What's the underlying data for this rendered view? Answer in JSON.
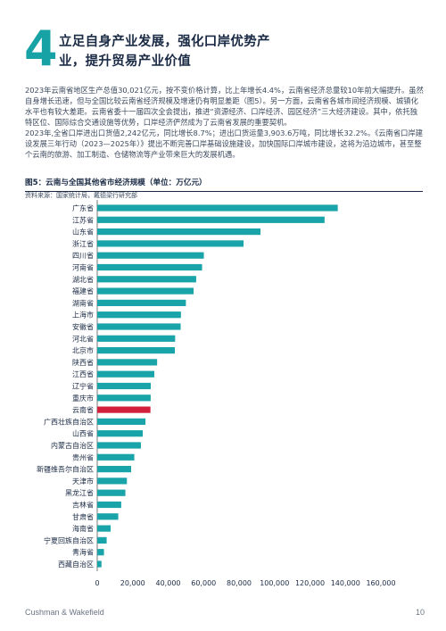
{
  "section": {
    "number": "4",
    "title": "立足自身产业发展，强化口岸优势产业，提升贸易产业价值"
  },
  "paragraphs": [
    "2023年云南省地区生产总值30,021亿元，按不变价格计算，比上年增长4.4%，云南省经济总量较10年前大幅提升。虽然自身增长迅速，但与全国比较云南省经济规模及增速仍有明显差距（图5）。另一方面，云南省各城市间经济规模、城镇化水平也有较大差距。云南省委十一届四次全会提出，推进“资源经济、口岸经济、园区经济”三大经济建设。其中，依托独特区位、国际综合交通设施等优势，口岸经济俨然成为了云南省发展的重要契机。",
    "2023年,全省口岸进出口货值2,242亿元，同比增长8.7%；进出口货运量3,903.6万吨，同比增长32.2%。《云南省口岸建设发展三年行动（2023—2025年）》提出不断完善口岸基础设施建设，加快国际口岸城市建设，这将为沿边城市，甚至整个云南的旅游、加工制造、仓储物流等产业带来巨大的发展机遇。"
  ],
  "figure": {
    "title": "图5：云南与全国其他省市经济规模（单位：万亿元）",
    "source": "资料来源：国家统计局，戴德梁行研究部"
  },
  "chart_data": {
    "type": "bar",
    "orientation": "horizontal",
    "categories": [
      "广东省",
      "江苏省",
      "山东省",
      "浙江省",
      "四川省",
      "河南省",
      "湖北省",
      "福建省",
      "湖南省",
      "上海市",
      "安徽省",
      "河北省",
      "北京市",
      "陕西省",
      "江西省",
      "辽宁省",
      "重庆市",
      "云南省",
      "广西壮族自治区",
      "山西省",
      "内蒙古自治区",
      "贵州省",
      "新疆维吾尔自治区",
      "天津市",
      "黑龙江省",
      "吉林省",
      "甘肃省",
      "海南省",
      "宁夏回族自治区",
      "青海省",
      "西藏自治区"
    ],
    "values": [
      135673,
      128222,
      92069,
      82553,
      60133,
      59132,
      55804,
      54355,
      50013,
      47219,
      47051,
      43944,
      43761,
      33786,
      32200,
      30209,
      30146,
      30021,
      27202,
      25698,
      24627,
      20913,
      19126,
      16737,
      15884,
      13531,
      11864,
      7551,
      5315,
      3799,
      2393
    ],
    "highlight": "云南省",
    "xlim": [
      0,
      160000
    ],
    "xticks": [
      "0",
      "20,000",
      "40,000",
      "60,000",
      "80,000",
      "100,000",
      "120,000",
      "140,000",
      "160,000"
    ],
    "colors": {
      "bar": "#18a4a8",
      "highlight": "#d3203a"
    },
    "grid": false
  },
  "footer": {
    "brand": "Cushman & Wakefield",
    "page": "10"
  }
}
